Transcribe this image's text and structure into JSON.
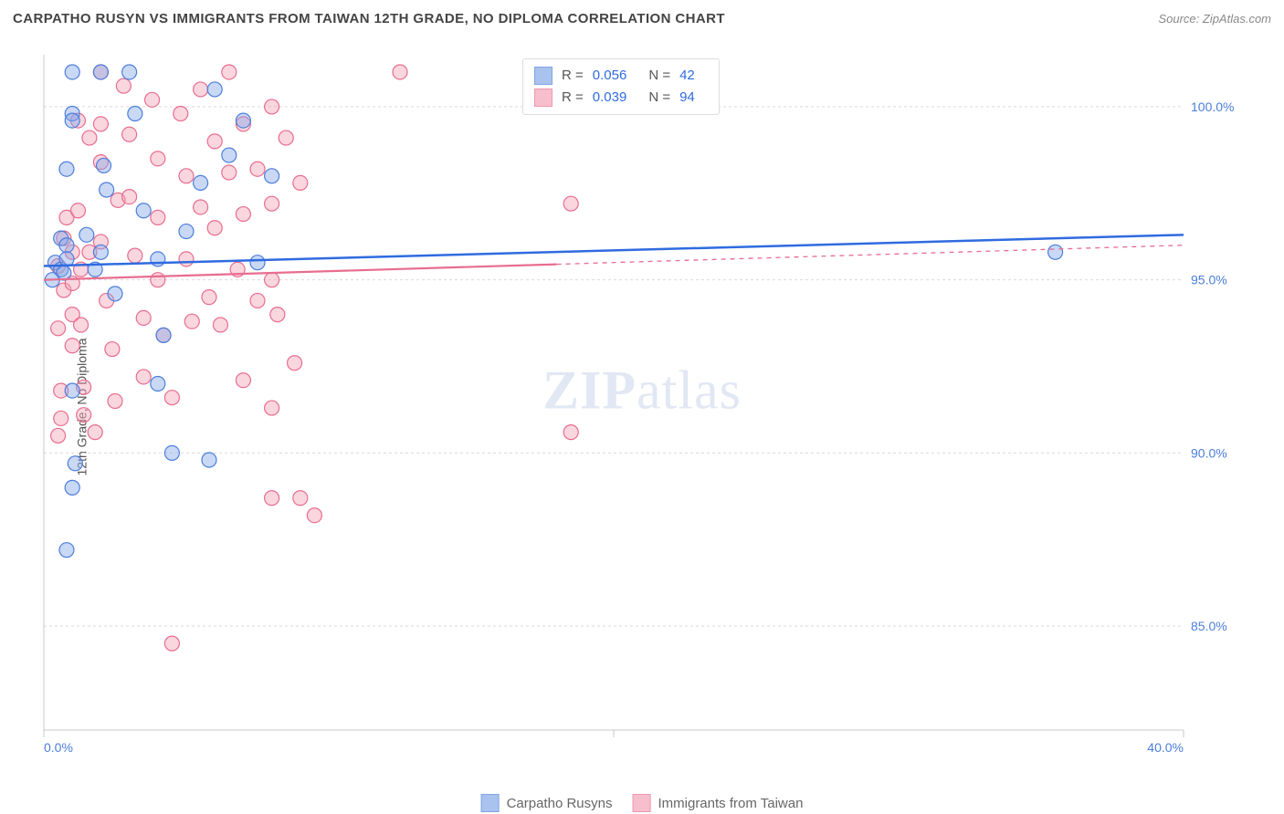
{
  "title": "CARPATHO RUSYN VS IMMIGRANTS FROM TAIWAN 12TH GRADE, NO DIPLOMA CORRELATION CHART",
  "source_label": "Source: ZipAtlas.com",
  "y_axis_label": "12th Grade, No Diploma",
  "watermark_bold": "ZIP",
  "watermark_rest": "atlas",
  "chart": {
    "type": "scatter",
    "background_color": "#ffffff",
    "grid_color": "#d9d9d9",
    "axis_color": "#c9c9c9",
    "x": {
      "min": 0,
      "max": 40,
      "ticks": [
        0,
        20,
        40
      ],
      "tick_labels": [
        "0.0%",
        "",
        "40.0%"
      ]
    },
    "y": {
      "min": 82,
      "max": 101.5,
      "ticks": [
        85,
        90,
        95,
        100
      ],
      "tick_labels": [
        "85.0%",
        "90.0%",
        "95.0%",
        "100.0%"
      ]
    },
    "series": [
      {
        "id": "blue",
        "label": "Carpatho Rusyns",
        "fill": "#87a9e8",
        "fill_opacity": 0.45,
        "stroke": "#4b7edb",
        "marker_radius": 8,
        "R": "0.056",
        "N": "42",
        "trend": {
          "y_at_xmin": 95.4,
          "y_at_xmax": 96.3,
          "solid_until_x": 40,
          "color": "#2f6be0",
          "width": 2.5
        },
        "points": [
          [
            0.4,
            95.5
          ],
          [
            0.6,
            96.2
          ],
          [
            0.6,
            95.3
          ],
          [
            0.7,
            95.2
          ],
          [
            0.8,
            96.0
          ],
          [
            0.8,
            95.6
          ],
          [
            0.8,
            98.2
          ],
          [
            0.3,
            95.0
          ],
          [
            1.0,
            101.0
          ],
          [
            1.0,
            99.8
          ],
          [
            1.0,
            99.6
          ],
          [
            1.5,
            96.3
          ],
          [
            1.8,
            95.3
          ],
          [
            1.0,
            91.8
          ],
          [
            1.1,
            89.7
          ],
          [
            1.0,
            89.0
          ],
          [
            0.8,
            87.2
          ],
          [
            2.0,
            101.0
          ],
          [
            2.1,
            98.3
          ],
          [
            2.2,
            97.6
          ],
          [
            2.0,
            95.8
          ],
          [
            2.5,
            94.6
          ],
          [
            3.0,
            101.0
          ],
          [
            3.2,
            99.8
          ],
          [
            3.5,
            97.0
          ],
          [
            4.0,
            95.6
          ],
          [
            4.2,
            93.4
          ],
          [
            4.0,
            92.0
          ],
          [
            4.5,
            90.0
          ],
          [
            5.0,
            96.4
          ],
          [
            5.5,
            97.8
          ],
          [
            5.8,
            89.8
          ],
          [
            6.0,
            100.5
          ],
          [
            6.5,
            98.6
          ],
          [
            7.0,
            99.6
          ],
          [
            7.5,
            95.5
          ],
          [
            8.0,
            98.0
          ],
          [
            35.5,
            95.8
          ]
        ]
      },
      {
        "id": "pink",
        "label": "Immigrants from Taiwan",
        "fill": "#f5a3b9",
        "fill_opacity": 0.45,
        "stroke": "#e86d8f",
        "marker_radius": 8,
        "R": "0.039",
        "N": "94",
        "trend": {
          "y_at_xmin": 95.0,
          "y_at_xmax": 96.0,
          "solid_until_x": 18,
          "color": "#e86d8f",
          "width": 2.2
        },
        "points": [
          [
            0.5,
            95.4
          ],
          [
            0.5,
            93.6
          ],
          [
            0.6,
            91.8
          ],
          [
            0.6,
            91.0
          ],
          [
            0.5,
            90.5
          ],
          [
            0.7,
            94.7
          ],
          [
            0.7,
            96.2
          ],
          [
            0.8,
            96.8
          ],
          [
            1.0,
            95.8
          ],
          [
            1.0,
            94.9
          ],
          [
            1.0,
            94.0
          ],
          [
            1.0,
            93.1
          ],
          [
            1.2,
            99.6
          ],
          [
            1.2,
            97.0
          ],
          [
            1.3,
            95.3
          ],
          [
            1.3,
            93.7
          ],
          [
            1.4,
            91.9
          ],
          [
            1.4,
            91.1
          ],
          [
            1.6,
            99.1
          ],
          [
            1.6,
            95.8
          ],
          [
            1.8,
            90.6
          ],
          [
            2.0,
            101.0
          ],
          [
            2.0,
            99.5
          ],
          [
            2.0,
            98.4
          ],
          [
            2.0,
            96.1
          ],
          [
            2.2,
            94.4
          ],
          [
            2.4,
            93.0
          ],
          [
            2.5,
            91.5
          ],
          [
            2.6,
            97.3
          ],
          [
            2.8,
            100.6
          ],
          [
            3.0,
            99.2
          ],
          [
            3.0,
            97.4
          ],
          [
            3.2,
            95.7
          ],
          [
            3.5,
            93.9
          ],
          [
            3.5,
            92.2
          ],
          [
            3.8,
            100.2
          ],
          [
            4.0,
            98.5
          ],
          [
            4.0,
            96.8
          ],
          [
            4.0,
            95.0
          ],
          [
            4.2,
            93.4
          ],
          [
            4.5,
            91.6
          ],
          [
            4.5,
            84.5
          ],
          [
            4.8,
            99.8
          ],
          [
            5.0,
            98.0
          ],
          [
            5.0,
            95.6
          ],
          [
            5.2,
            93.8
          ],
          [
            5.5,
            100.5
          ],
          [
            5.5,
            97.1
          ],
          [
            5.8,
            94.5
          ],
          [
            6.0,
            99.0
          ],
          [
            6.0,
            96.5
          ],
          [
            6.2,
            93.7
          ],
          [
            6.5,
            101.0
          ],
          [
            6.5,
            98.1
          ],
          [
            6.8,
            95.3
          ],
          [
            7.0,
            99.5
          ],
          [
            7.0,
            96.9
          ],
          [
            7.0,
            92.1
          ],
          [
            7.5,
            98.2
          ],
          [
            7.5,
            94.4
          ],
          [
            8.0,
            100.0
          ],
          [
            8.0,
            97.2
          ],
          [
            8.0,
            95.0
          ],
          [
            8.0,
            91.3
          ],
          [
            8.0,
            88.7
          ],
          [
            8.2,
            94.0
          ],
          [
            8.5,
            99.1
          ],
          [
            8.8,
            92.6
          ],
          [
            9.0,
            97.8
          ],
          [
            9.0,
            88.7
          ],
          [
            9.5,
            88.2
          ],
          [
            12.5,
            101.0
          ],
          [
            18.5,
            97.2
          ],
          [
            18.5,
            90.6
          ]
        ]
      }
    ],
    "legend_top_rows": [
      {
        "series": 0,
        "r_label": "R =",
        "n_label": "N ="
      },
      {
        "series": 1,
        "r_label": "R =",
        "n_label": "N ="
      }
    ]
  },
  "legend_bottom": [
    {
      "series": 0
    },
    {
      "series": 1
    }
  ]
}
